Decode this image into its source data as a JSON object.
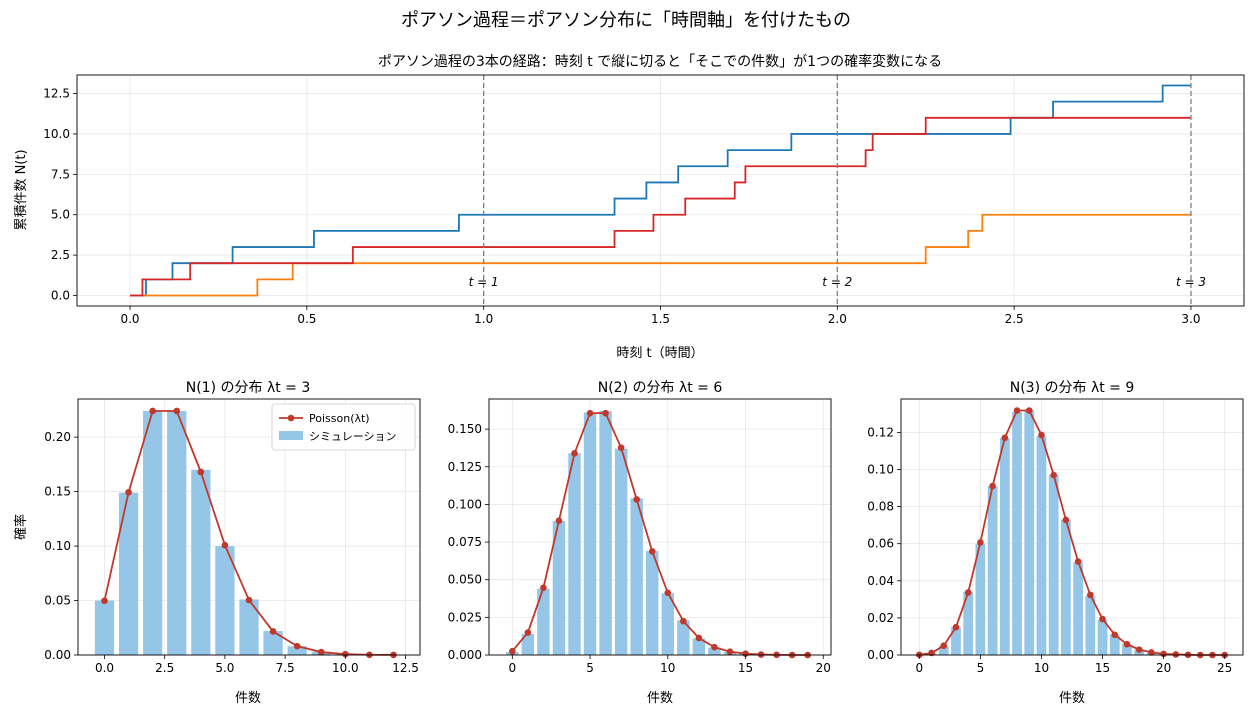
{
  "figure": {
    "suptitle": "ポアソン過程＝ポアソン分布に「時間軸」を付けたもの"
  },
  "chart_data": [
    {
      "type": "line",
      "title": "ポアソン過程の3本の経路：時刻 t で縦に切ると「そこでの件数」が1つの確率変数になる",
      "xlabel": "時刻 t（時間）",
      "ylabel": "累積件数 N(t)",
      "xlim": [
        -0.15,
        3.15
      ],
      "ylim": [
        -0.65,
        13.65
      ],
      "xticks": [
        0.0,
        0.5,
        1.0,
        1.5,
        2.0,
        2.5,
        3.0
      ],
      "xtick_labels": [
        "0.0",
        "0.5",
        "1.0",
        "1.5",
        "2.0",
        "2.5",
        "3.0"
      ],
      "yticks": [
        0.0,
        2.5,
        5.0,
        7.5,
        10.0,
        12.5
      ],
      "ytick_labels": [
        "0.0",
        "2.5",
        "5.0",
        "7.5",
        "10.0",
        "12.5"
      ],
      "grid": true,
      "vlines": [
        {
          "x": 1,
          "label": "t = 1"
        },
        {
          "x": 2,
          "label": "t = 2"
        },
        {
          "x": 3,
          "label": "t = 3"
        }
      ],
      "series": [
        {
          "color": "#1f77b4",
          "step": true,
          "jumps": [
            0.045,
            0.12,
            0.29,
            0.52,
            0.93,
            1.37,
            1.46,
            1.55,
            1.69,
            1.87,
            2.49,
            2.61,
            2.92
          ],
          "end": 3.0
        },
        {
          "color": "#ff7f0e",
          "step": true,
          "jumps": [
            0.36,
            0.46,
            2.25,
            2.37,
            2.41
          ],
          "end": 3.0
        },
        {
          "color": "#d62728",
          "step": true,
          "jumps": [
            0.035,
            0.17,
            0.63,
            1.37,
            1.48,
            1.57,
            1.71,
            1.74,
            2.08,
            2.1,
            2.25
          ],
          "end": 3.0
        }
      ]
    },
    {
      "type": "bar",
      "title": "N(1) の分布  λt = 3",
      "xlabel": "件数",
      "ylabel": "確率",
      "xlim": [
        -1.1,
        13.1
      ],
      "ylim": [
        0,
        0.235
      ],
      "xticks": [
        0.0,
        2.5,
        5.0,
        7.5,
        10.0,
        12.5
      ],
      "xtick_labels": [
        "0.0",
        "2.5",
        "5.0",
        "7.5",
        "10.0",
        "12.5"
      ],
      "yticks": [
        0.0,
        0.05,
        0.1,
        0.15,
        0.2
      ],
      "ytick_labels": [
        "0.00",
        "0.05",
        "0.10",
        "0.15",
        "0.20"
      ],
      "grid": true,
      "legend": {
        "placement": "top-right",
        "entries": [
          "Poisson(λt)",
          "シミュレーション"
        ]
      },
      "bars": {
        "name": "シミュレーション",
        "x": [
          0,
          1,
          2,
          3,
          4,
          5,
          6,
          7,
          8,
          9,
          10,
          11,
          12
        ],
        "values": [
          0.05,
          0.149,
          0.224,
          0.224,
          0.17,
          0.1,
          0.051,
          0.022,
          0.008,
          0.003,
          0.001,
          0.0003,
          0.0001
        ]
      },
      "line": {
        "name": "Poisson(λt)",
        "x": [
          0,
          1,
          2,
          3,
          4,
          5,
          6,
          7,
          8,
          9,
          10,
          11,
          12
        ],
        "values": [
          0.0498,
          0.1494,
          0.224,
          0.224,
          0.168,
          0.1008,
          0.0504,
          0.0216,
          0.0081,
          0.0027,
          0.0008,
          0.0002,
          0.0001
        ]
      }
    },
    {
      "type": "bar",
      "title": "N(2) の分布  λt = 6",
      "xlabel": "件数",
      "ylabel": "",
      "xlim": [
        -1.5,
        20.5
      ],
      "ylim": [
        0,
        0.17
      ],
      "xticks": [
        0,
        5,
        10,
        15,
        20
      ],
      "xtick_labels": [
        "0",
        "5",
        "10",
        "15",
        "20"
      ],
      "yticks": [
        0.0,
        0.025,
        0.05,
        0.075,
        0.1,
        0.125,
        0.15
      ],
      "ytick_labels": [
        "0.000",
        "0.025",
        "0.050",
        "0.075",
        "0.100",
        "0.125",
        "0.150"
      ],
      "grid": true,
      "bars": {
        "name": "シミュレーション",
        "x": [
          0,
          1,
          2,
          3,
          4,
          5,
          6,
          7,
          8,
          9,
          10,
          11,
          12,
          13,
          14,
          15,
          16,
          17,
          18,
          19
        ],
        "values": [
          0.002,
          0.014,
          0.044,
          0.089,
          0.134,
          0.161,
          0.162,
          0.137,
          0.104,
          0.069,
          0.041,
          0.023,
          0.011,
          0.005,
          0.002,
          0.001,
          0.0003,
          0.0001,
          0.0001,
          0.0
        ]
      },
      "line": {
        "name": "Poisson(λt)",
        "x": [
          0,
          1,
          2,
          3,
          4,
          5,
          6,
          7,
          8,
          9,
          10,
          11,
          12,
          13,
          14,
          15,
          16,
          17,
          18,
          19
        ],
        "values": [
          0.0025,
          0.0149,
          0.0446,
          0.0892,
          0.1339,
          0.1606,
          0.1606,
          0.1377,
          0.1033,
          0.0688,
          0.0413,
          0.0225,
          0.0113,
          0.0052,
          0.0022,
          0.0009,
          0.0003,
          0.0001,
          0.0,
          0.0
        ]
      }
    },
    {
      "type": "bar",
      "title": "N(3) の分布  λt = 9",
      "xlabel": "件数",
      "ylabel": "",
      "xlim": [
        -1.5,
        26.5
      ],
      "ylim": [
        0,
        0.138
      ],
      "xticks": [
        0,
        5,
        10,
        15,
        20,
        25
      ],
      "xtick_labels": [
        "0",
        "5",
        "10",
        "15",
        "20",
        "25"
      ],
      "yticks": [
        0.0,
        0.02,
        0.04,
        0.06,
        0.08,
        0.1,
        0.12
      ],
      "ytick_labels": [
        "0.00",
        "0.02",
        "0.04",
        "0.06",
        "0.08",
        "0.10",
        "0.12"
      ],
      "grid": true,
      "bars": {
        "name": "シミュレーション",
        "x": [
          0,
          1,
          2,
          3,
          4,
          5,
          6,
          7,
          8,
          9,
          10,
          11,
          12,
          13,
          14,
          15,
          16,
          17,
          18,
          19,
          20,
          21,
          22,
          23,
          24,
          25
        ],
        "values": [
          0.0001,
          0.001,
          0.005,
          0.015,
          0.034,
          0.06,
          0.091,
          0.117,
          0.131,
          0.132,
          0.118,
          0.097,
          0.073,
          0.05,
          0.032,
          0.019,
          0.011,
          0.006,
          0.003,
          0.001,
          0.0005,
          0.0002,
          0.0001,
          0.0,
          0.0,
          0.0
        ]
      },
      "line": {
        "name": "Poisson(λt)",
        "x": [
          0,
          1,
          2,
          3,
          4,
          5,
          6,
          7,
          8,
          9,
          10,
          11,
          12,
          13,
          14,
          15,
          16,
          17,
          18,
          19,
          20,
          21,
          22,
          23,
          24,
          25
        ],
        "values": [
          0.0001,
          0.0011,
          0.005,
          0.015,
          0.0337,
          0.0607,
          0.0911,
          0.1171,
          0.1318,
          0.1318,
          0.1186,
          0.097,
          0.0728,
          0.0504,
          0.0324,
          0.0194,
          0.0109,
          0.0058,
          0.0029,
          0.0014,
          0.0006,
          0.0003,
          0.0001,
          0.0,
          0.0,
          0.0
        ]
      }
    }
  ]
}
